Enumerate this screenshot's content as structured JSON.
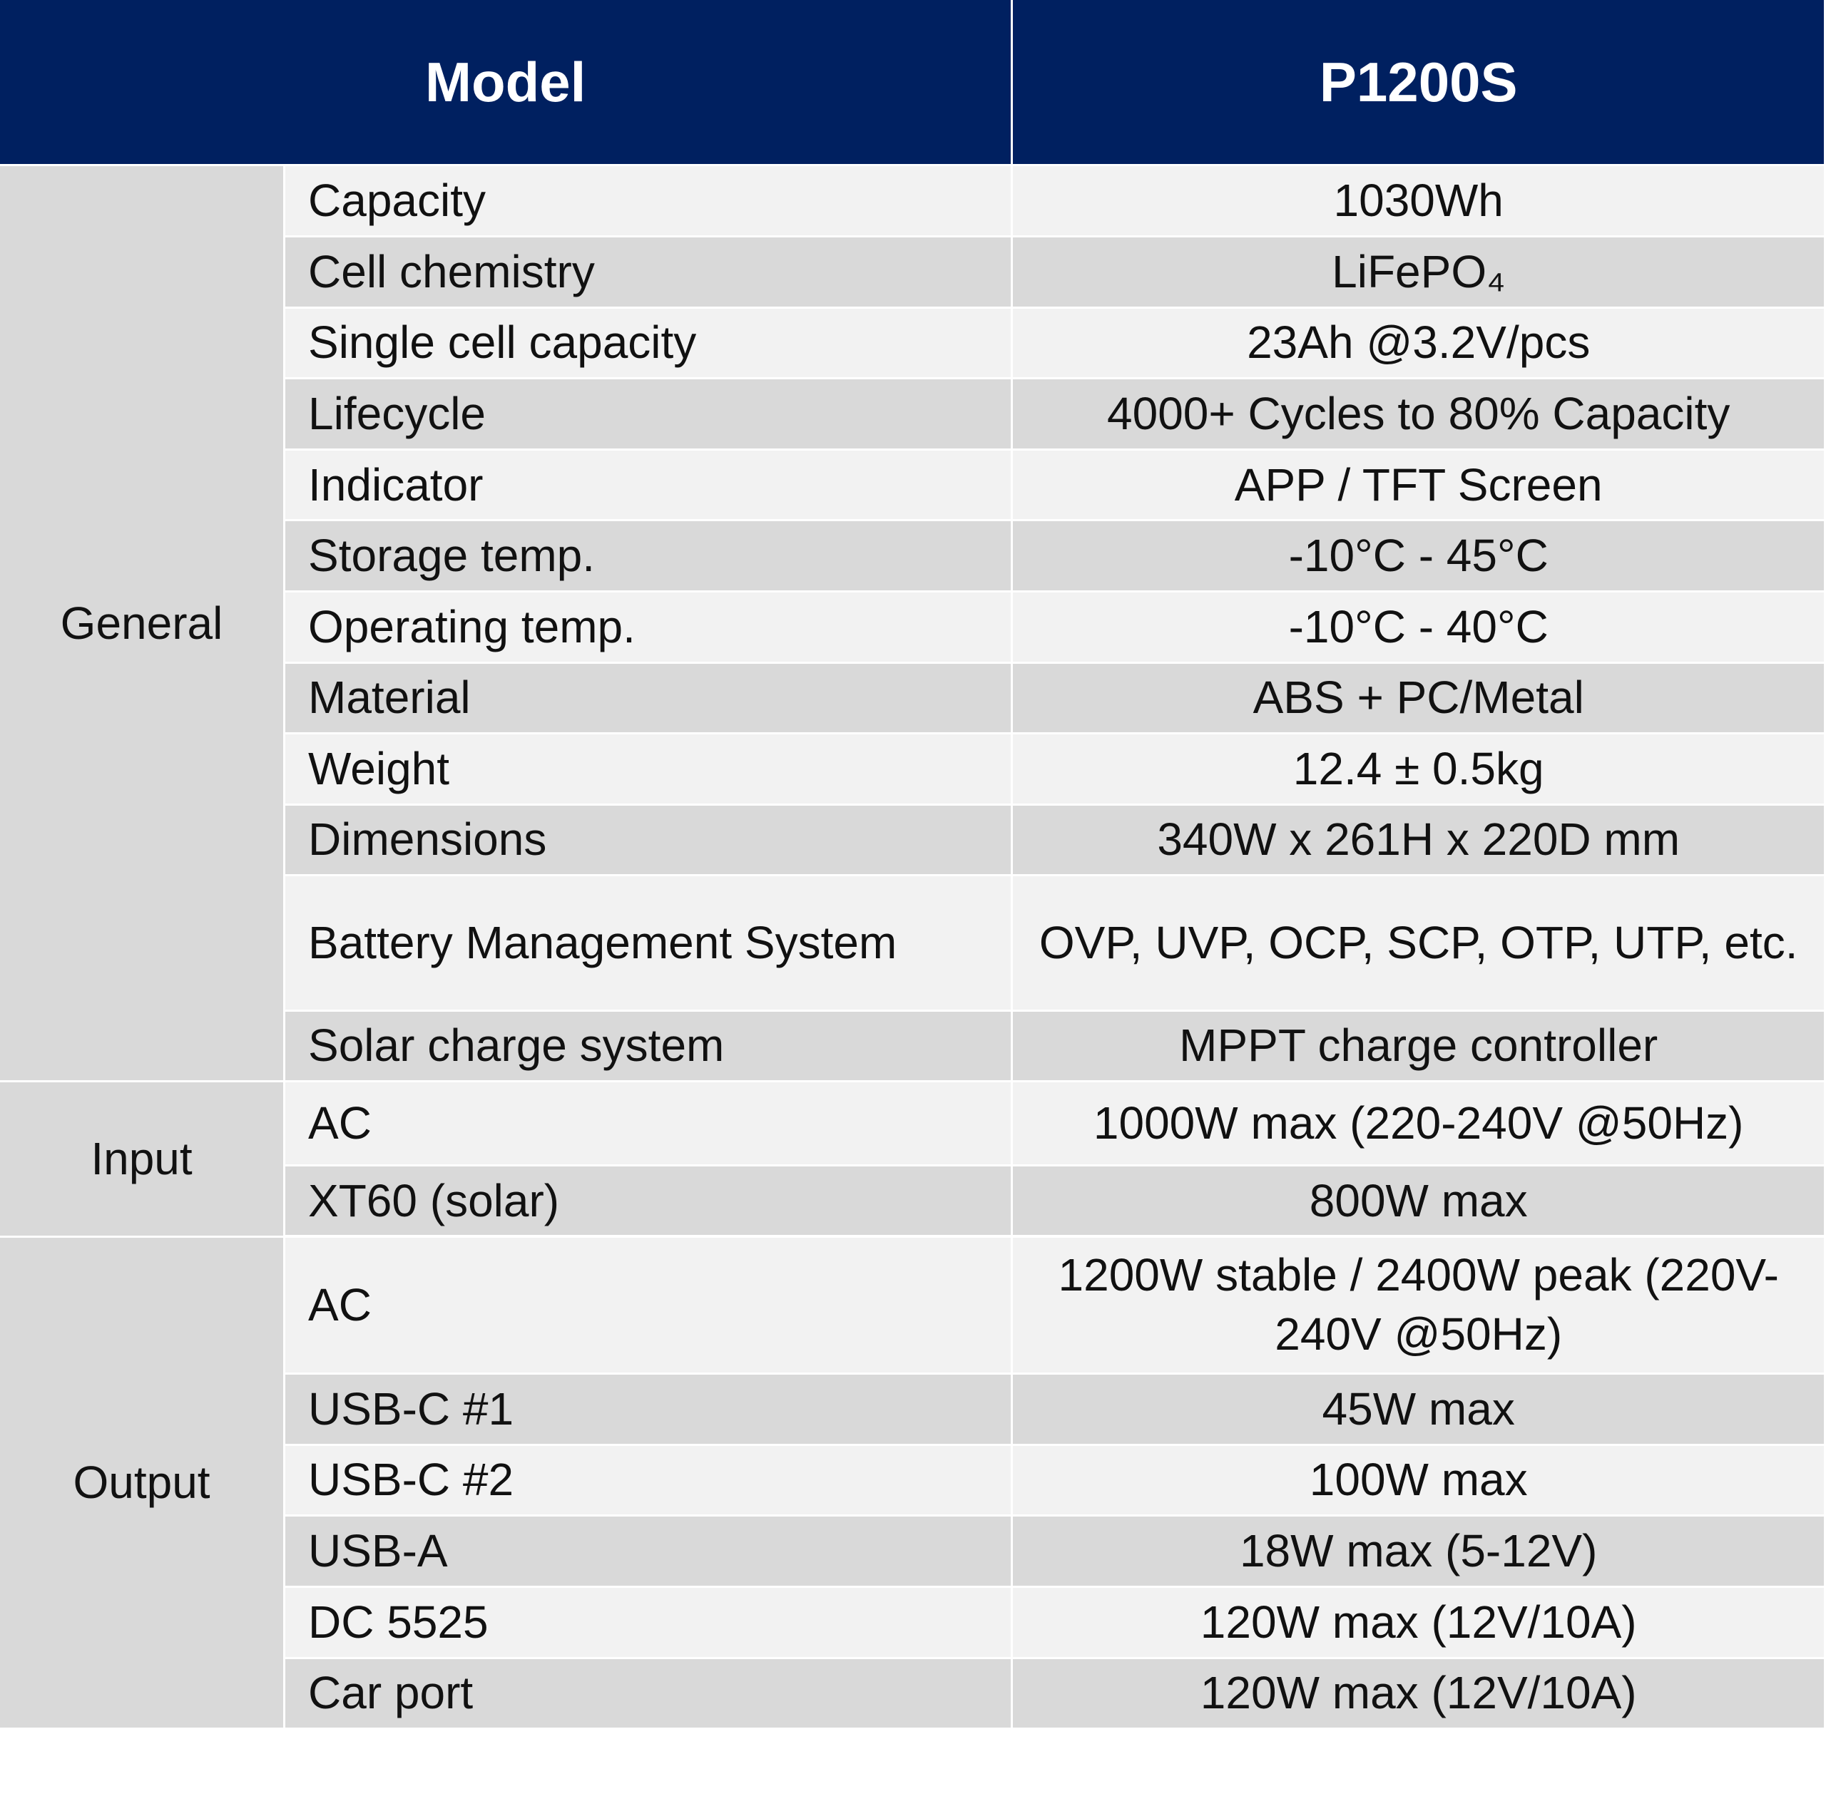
{
  "header": {
    "model_label": "Model",
    "model": "P1200S"
  },
  "groups": [
    {
      "name": "General",
      "rows": [
        {
          "label": "Capacity",
          "value": "1030Wh"
        },
        {
          "label": "Cell chemistry",
          "value": "LiFePO₄"
        },
        {
          "label": "Single cell capacity",
          "value": "23Ah @3.2V/pcs"
        },
        {
          "label": "Lifecycle",
          "value": "4000+ Cycles to 80% Capacity"
        },
        {
          "label": "Indicator",
          "value": "APP / TFT Screen"
        },
        {
          "label": "Storage temp.",
          "value": "-10°C - 45°C"
        },
        {
          "label": "Operating temp.",
          "value": "-10°C - 40°C"
        },
        {
          "label": "Material",
          "value": "ABS + PC/Metal"
        },
        {
          "label": "Weight",
          "value": "12.4 ± 0.5kg"
        },
        {
          "label": "Dimensions",
          "value": "340W x 261H x 220D mm"
        },
        {
          "label": "Battery Management System",
          "value": "OVP, UVP, OCP, SCP, OTP, UTP, etc."
        },
        {
          "label": "Solar charge system",
          "value": "MPPT charge controller"
        }
      ]
    },
    {
      "name": "Input",
      "rows": [
        {
          "label": "AC",
          "value": "1000W max (220-240V @50Hz)"
        },
        {
          "label": "XT60 (solar)",
          "value": "800W max"
        }
      ]
    },
    {
      "name": "Output",
      "rows": [
        {
          "label": "AC",
          "value": "1200W stable / 2400W peak (220V-240V @50Hz)"
        },
        {
          "label": "USB-C #1",
          "value": "45W max"
        },
        {
          "label": "USB-C #2",
          "value": "100W max"
        },
        {
          "label": "USB-A",
          "value": "18W max (5-12V)"
        },
        {
          "label": "DC 5525",
          "value": "120W max (12V/10A)"
        },
        {
          "label": "Car port",
          "value": "120W max (12V/10A)"
        }
      ]
    }
  ]
}
